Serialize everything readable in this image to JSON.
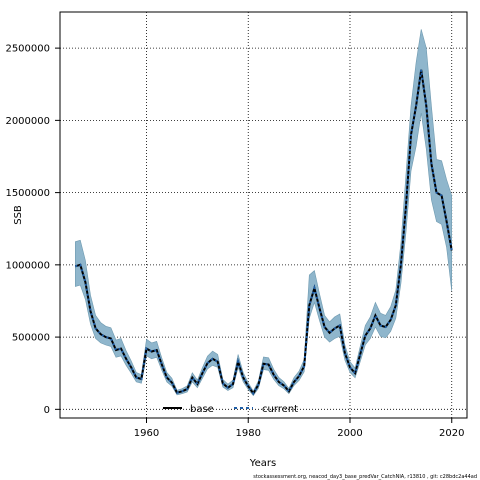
{
  "chart_data": {
    "type": "line",
    "title": "",
    "xlabel": "Years",
    "ylabel": "SSB",
    "xlim": [
      1943,
      2023
    ],
    "ylim": [
      -60000,
      2750000
    ],
    "xticks": [
      1960,
      1980,
      2000,
      2020
    ],
    "yticks": [
      0,
      500000,
      1000000,
      1500000,
      2000000,
      2500000
    ],
    "ytick_labels": [
      "0",
      "500000",
      "1000000",
      "1500000",
      "2000000",
      "2500000"
    ],
    "grid": true,
    "legend_placement": "bottom-left",
    "colors": {
      "band": "#8fb6cc",
      "band_edge": "#6f9ab0",
      "line": "#000000"
    },
    "footer": "stockassessment.org, neacod_day3_base_predVar_CatchNIA, r13810 , git: c28bdc2a44ad",
    "x": [
      1946,
      1947,
      1948,
      1949,
      1950,
      1951,
      1952,
      1953,
      1954,
      1955,
      1956,
      1957,
      1958,
      1959,
      1960,
      1961,
      1962,
      1963,
      1964,
      1965,
      1966,
      1967,
      1968,
      1969,
      1970,
      1971,
      1972,
      1973,
      1974,
      1975,
      1976,
      1977,
      1978,
      1979,
      1980,
      1981,
      1982,
      1983,
      1984,
      1985,
      1986,
      1987,
      1988,
      1989,
      1990,
      1991,
      1992,
      1993,
      1994,
      1995,
      1996,
      1997,
      1998,
      1999,
      2000,
      2001,
      2002,
      2003,
      2004,
      2005,
      2006,
      2007,
      2008,
      2009,
      2010,
      2011,
      2012,
      2013,
      2014,
      2015,
      2016,
      2017,
      2018,
      2019,
      2020
    ],
    "series": [
      {
        "name": "base",
        "values": [
          990000,
          1000000,
          880000,
          680000,
          560000,
          520000,
          500000,
          490000,
          410000,
          420000,
          350000,
          290000,
          220000,
          210000,
          420000,
          400000,
          410000,
          310000,
          220000,
          185000,
          115000,
          125000,
          140000,
          220000,
          175000,
          250000,
          320000,
          350000,
          330000,
          180000,
          150000,
          175000,
          330000,
          220000,
          160000,
          110000,
          170000,
          315000,
          310000,
          240000,
          190000,
          165000,
          125000,
          190000,
          230000,
          300000,
          720000,
          840000,
          700000,
          570000,
          530000,
          560000,
          580000,
          390000,
          290000,
          250000,
          380000,
          510000,
          560000,
          650000,
          580000,
          570000,
          620000,
          720000,
          1000000,
          1400000,
          1900000,
          2100000,
          2350000,
          2100000,
          1700000,
          1500000,
          1480000,
          1300000,
          1100000
        ]
      },
      {
        "name": "current",
        "values": [
          990000,
          1000000,
          880000,
          680000,
          560000,
          520000,
          500000,
          490000,
          410000,
          420000,
          350000,
          290000,
          220000,
          210000,
          420000,
          400000,
          410000,
          310000,
          220000,
          185000,
          115000,
          125000,
          140000,
          220000,
          175000,
          250000,
          320000,
          350000,
          330000,
          180000,
          150000,
          175000,
          330000,
          220000,
          160000,
          110000,
          170000,
          315000,
          310000,
          240000,
          190000,
          165000,
          125000,
          190000,
          230000,
          300000,
          720000,
          840000,
          700000,
          570000,
          530000,
          560000,
          580000,
          390000,
          290000,
          250000,
          380000,
          510000,
          560000,
          650000,
          580000,
          570000,
          620000,
          720000,
          1000000,
          1400000,
          1900000,
          2100000,
          2350000,
          2100000,
          1700000,
          1500000,
          1480000,
          1300000,
          1100000
        ],
        "lower": [
          850000,
          860000,
          760000,
          590000,
          490000,
          460000,
          445000,
          435000,
          360000,
          370000,
          305000,
          250000,
          190000,
          180000,
          370000,
          350000,
          360000,
          270000,
          190000,
          160000,
          100000,
          108000,
          120000,
          190000,
          150000,
          215000,
          280000,
          305000,
          290000,
          155000,
          130000,
          150000,
          290000,
          190000,
          138000,
          95000,
          145000,
          275000,
          270000,
          208000,
          164000,
          142000,
          108000,
          165000,
          200000,
          260000,
          630000,
          740000,
          615000,
          500000,
          465000,
          490000,
          505000,
          340000,
          255000,
          218000,
          330000,
          445000,
          490000,
          570000,
          505000,
          495000,
          540000,
          630000,
          870000,
          1220000,
          1650000,
          1820000,
          2050000,
          1800000,
          1450000,
          1300000,
          1280000,
          1120000,
          820000
        ],
        "upper": [
          1160000,
          1170000,
          1030000,
          790000,
          650000,
          600000,
          575000,
          565000,
          480000,
          490000,
          405000,
          335000,
          255000,
          240000,
          485000,
          460000,
          470000,
          355000,
          255000,
          215000,
          132000,
          143000,
          162000,
          253000,
          202000,
          288000,
          368000,
          403000,
          380000,
          208000,
          174000,
          203000,
          380000,
          255000,
          185000,
          127000,
          197000,
          362000,
          357000,
          277000,
          220000,
          191000,
          145000,
          220000,
          265000,
          345000,
          930000,
          960000,
          800000,
          650000,
          605000,
          640000,
          660000,
          445000,
          330000,
          287000,
          435000,
          580000,
          640000,
          740000,
          665000,
          650000,
          710000,
          825000,
          1150000,
          1620000,
          2100000,
          2400000,
          2630000,
          2500000,
          2100000,
          1730000,
          1720000,
          1590000,
          1480000
        ]
      }
    ]
  }
}
